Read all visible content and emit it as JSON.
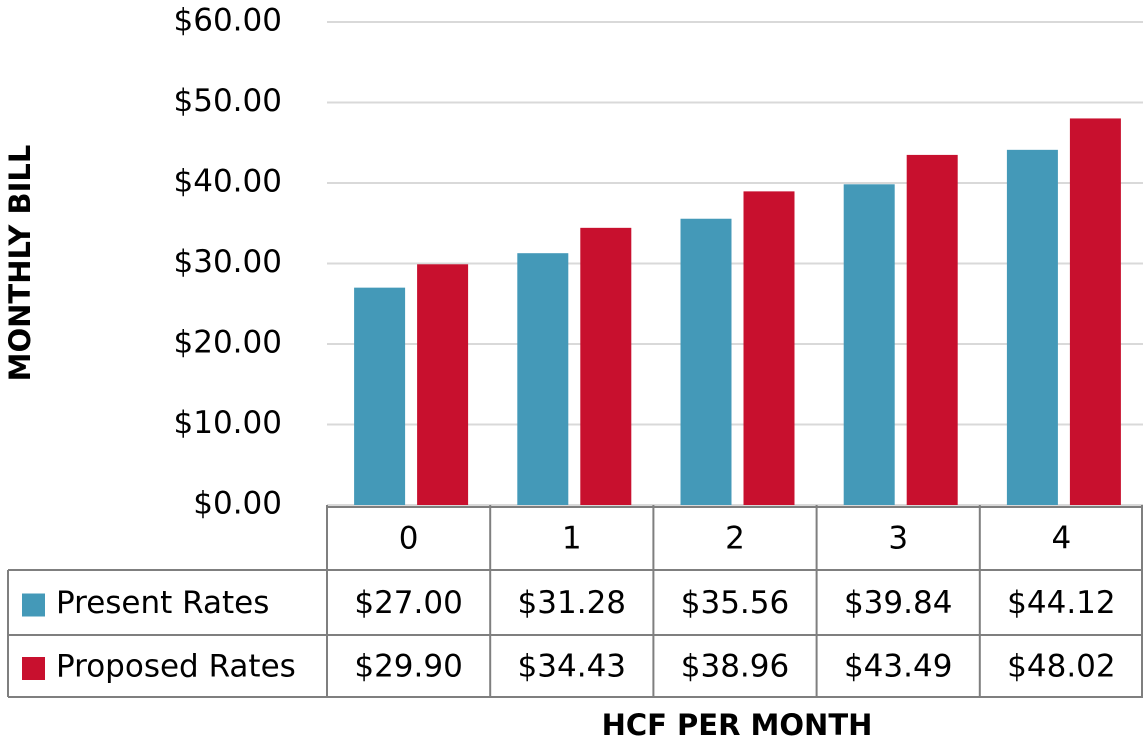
{
  "chart_data": {
    "type": "bar",
    "y_axis_label": "MONTHLY BILL",
    "x_axis_label": "HCF PER MONTH",
    "categories": [
      "0",
      "1",
      "2",
      "3",
      "4"
    ],
    "series": [
      {
        "name": "Present Rates",
        "color": "#4499b8",
        "values": [
          27.0,
          31.28,
          35.56,
          39.84,
          44.12
        ],
        "value_labels": [
          "$27.00",
          "$31.28",
          "$35.56",
          "$39.84",
          "$44.12"
        ]
      },
      {
        "name": "Proposed Rates",
        "color": "#c8102e",
        "values": [
          29.9,
          34.43,
          38.96,
          43.49,
          48.02
        ],
        "value_labels": [
          "$29.90",
          "$34.43",
          "$38.96",
          "$43.49",
          "$48.02"
        ]
      }
    ],
    "ylim": [
      0,
      60
    ],
    "yticks": [
      {
        "value": 0,
        "label": "$0.00"
      },
      {
        "value": 10,
        "label": "$10.00"
      },
      {
        "value": 20,
        "label": "$20.00"
      },
      {
        "value": 30,
        "label": "$30.00"
      },
      {
        "value": 40,
        "label": "$40.00"
      },
      {
        "value": 50,
        "label": "$50.00"
      },
      {
        "value": 60,
        "label": "$60.00"
      }
    ],
    "grid": true,
    "data_table": true
  }
}
